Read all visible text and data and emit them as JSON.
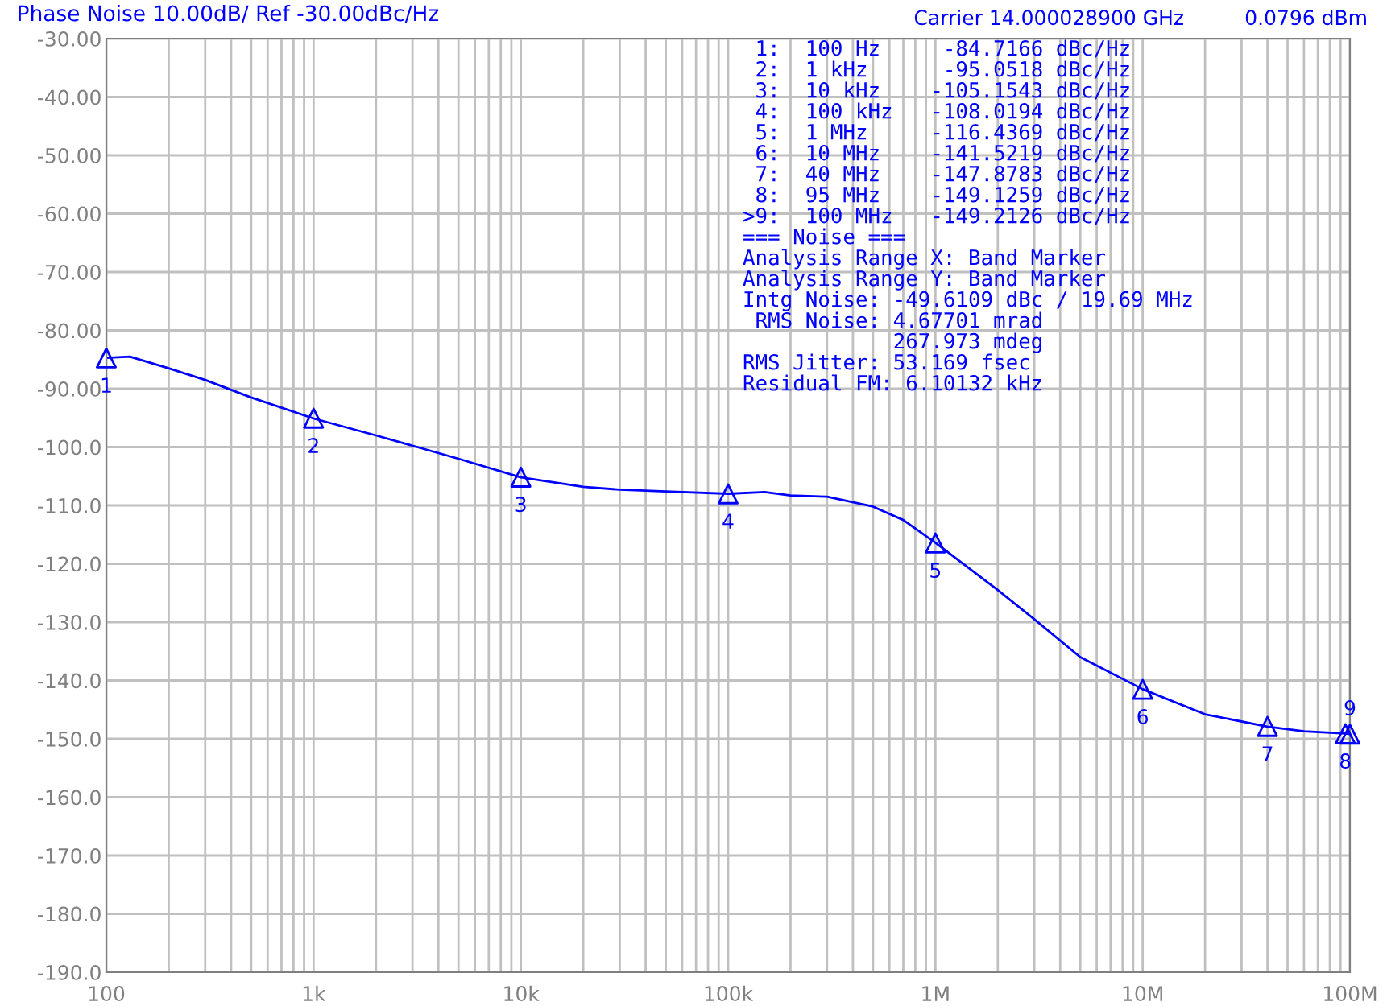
{
  "chart_data": {
    "type": "line",
    "title": "Phase Noise 10.00dB/ Ref -30.00dBc/Hz",
    "log": "x",
    "grid": true,
    "xlim": [
      100,
      100000000
    ],
    "ylim": [
      -190,
      -30
    ],
    "xticks": [
      {
        "value": 100,
        "label": "100"
      },
      {
        "value": 1000,
        "label": "1k"
      },
      {
        "value": 10000,
        "label": "10k"
      },
      {
        "value": 100000,
        "label": "100k"
      },
      {
        "value": 1000000,
        "label": "1M"
      },
      {
        "value": 10000000,
        "label": "10M"
      },
      {
        "value": 100000000,
        "label": "100M"
      }
    ],
    "yticks": [
      {
        "value": -30,
        "label": "-30.00"
      },
      {
        "value": -40,
        "label": "-40.00"
      },
      {
        "value": -50,
        "label": "-50.00"
      },
      {
        "value": -60,
        "label": "-60.00"
      },
      {
        "value": -70,
        "label": "-70.00"
      },
      {
        "value": -80,
        "label": "-80.00"
      },
      {
        "value": -90,
        "label": "-90.00"
      },
      {
        "value": -100,
        "label": "-100.0"
      },
      {
        "value": -110,
        "label": "-110.0"
      },
      {
        "value": -120,
        "label": "-120.0"
      },
      {
        "value": -130,
        "label": "-130.0"
      },
      {
        "value": -140,
        "label": "-140.0"
      },
      {
        "value": -150,
        "label": "-150.0"
      },
      {
        "value": -160,
        "label": "-160.0"
      },
      {
        "value": -170,
        "label": "-170.0"
      },
      {
        "value": -180,
        "label": "-180.0"
      },
      {
        "value": -190,
        "label": "-190.0"
      }
    ],
    "series": [
      {
        "color": "#0000ff",
        "x": [
          100,
          130,
          200,
          300,
          500,
          1000,
          2000,
          5000,
          10000,
          20000,
          30000,
          50000,
          100000,
          150000,
          200000,
          300000,
          500000,
          700000,
          1000000,
          2000000,
          3000000,
          5000000,
          10000000,
          20000000,
          40000000,
          60000000,
          95000000,
          100000000
        ],
        "values": [
          -84.7,
          -84.5,
          -86.5,
          -88.5,
          -91.5,
          -95.1,
          -98,
          -102,
          -105.2,
          -106.8,
          -107.3,
          -107.6,
          -108.0,
          -107.7,
          -108.3,
          -108.5,
          -110.2,
          -112.5,
          -116.4,
          -124.5,
          -129.5,
          -136,
          -141.5,
          -145.8,
          -147.9,
          -148.7,
          -149.1,
          -149.2
        ]
      },
      {
        "type": "scatter",
        "marker": "triangle",
        "color": "#0000ff",
        "x": [
          100,
          1000,
          10000,
          100000,
          1000000,
          10000000,
          40000000,
          95000000,
          100000000
        ],
        "values": [
          -84.7166,
          -95.0518,
          -105.1543,
          -108.0194,
          -116.4369,
          -141.5219,
          -147.8783,
          -149.1259,
          -149.2126
        ]
      }
    ],
    "annotations": [
      "Carrier 14.000028900 GHz",
      "0.0796 dBm",
      " 1:  100 Hz     -84.7166 dBc/Hz",
      " 2:  1 kHz      -95.0518 dBc/Hz",
      " 3:  10 kHz    -105.1543 dBc/Hz",
      " 4:  100 kHz   -108.0194 dBc/Hz",
      " 5:  1 MHz     -116.4369 dBc/Hz",
      " 6:  10 MHz    -141.5219 dBc/Hz",
      " 7:  40 MHz    -147.8783 dBc/Hz",
      " 8:  95 MHz    -149.1259 dBc/Hz",
      ">9:  100 MHz   -149.2126 dBc/Hz",
      "=== Noise ===",
      "Analysis Range X: Band Marker",
      "Analysis Range Y: Band Marker",
      "Intg Noise: -49.6109 dBc / 19.69 MHz",
      " RMS Noise: 4.67701 mrad",
      "            267.973 mdeg",
      "RMS Jitter: 53.169 fsec",
      "Residual FM: 6.10132 kHz",
      {
        "text": "1",
        "x": 100,
        "y": -84.7166
      },
      {
        "text": "2",
        "x": 1000,
        "y": -95.0518
      },
      {
        "text": "3",
        "x": 10000,
        "y": -105.1543
      },
      {
        "text": "4",
        "x": 100000,
        "y": -108.0194
      },
      {
        "text": "5",
        "x": 1000000,
        "y": -116.4369
      },
      {
        "text": "6",
        "x": 10000000,
        "y": -141.5219
      },
      {
        "text": "7",
        "x": 40000000,
        "y": -147.8783
      },
      {
        "text": "8",
        "x": 95000000,
        "y": -149.1259
      },
      {
        "text": "9",
        "x": 100000000,
        "y": -149.2126
      }
    ]
  }
}
